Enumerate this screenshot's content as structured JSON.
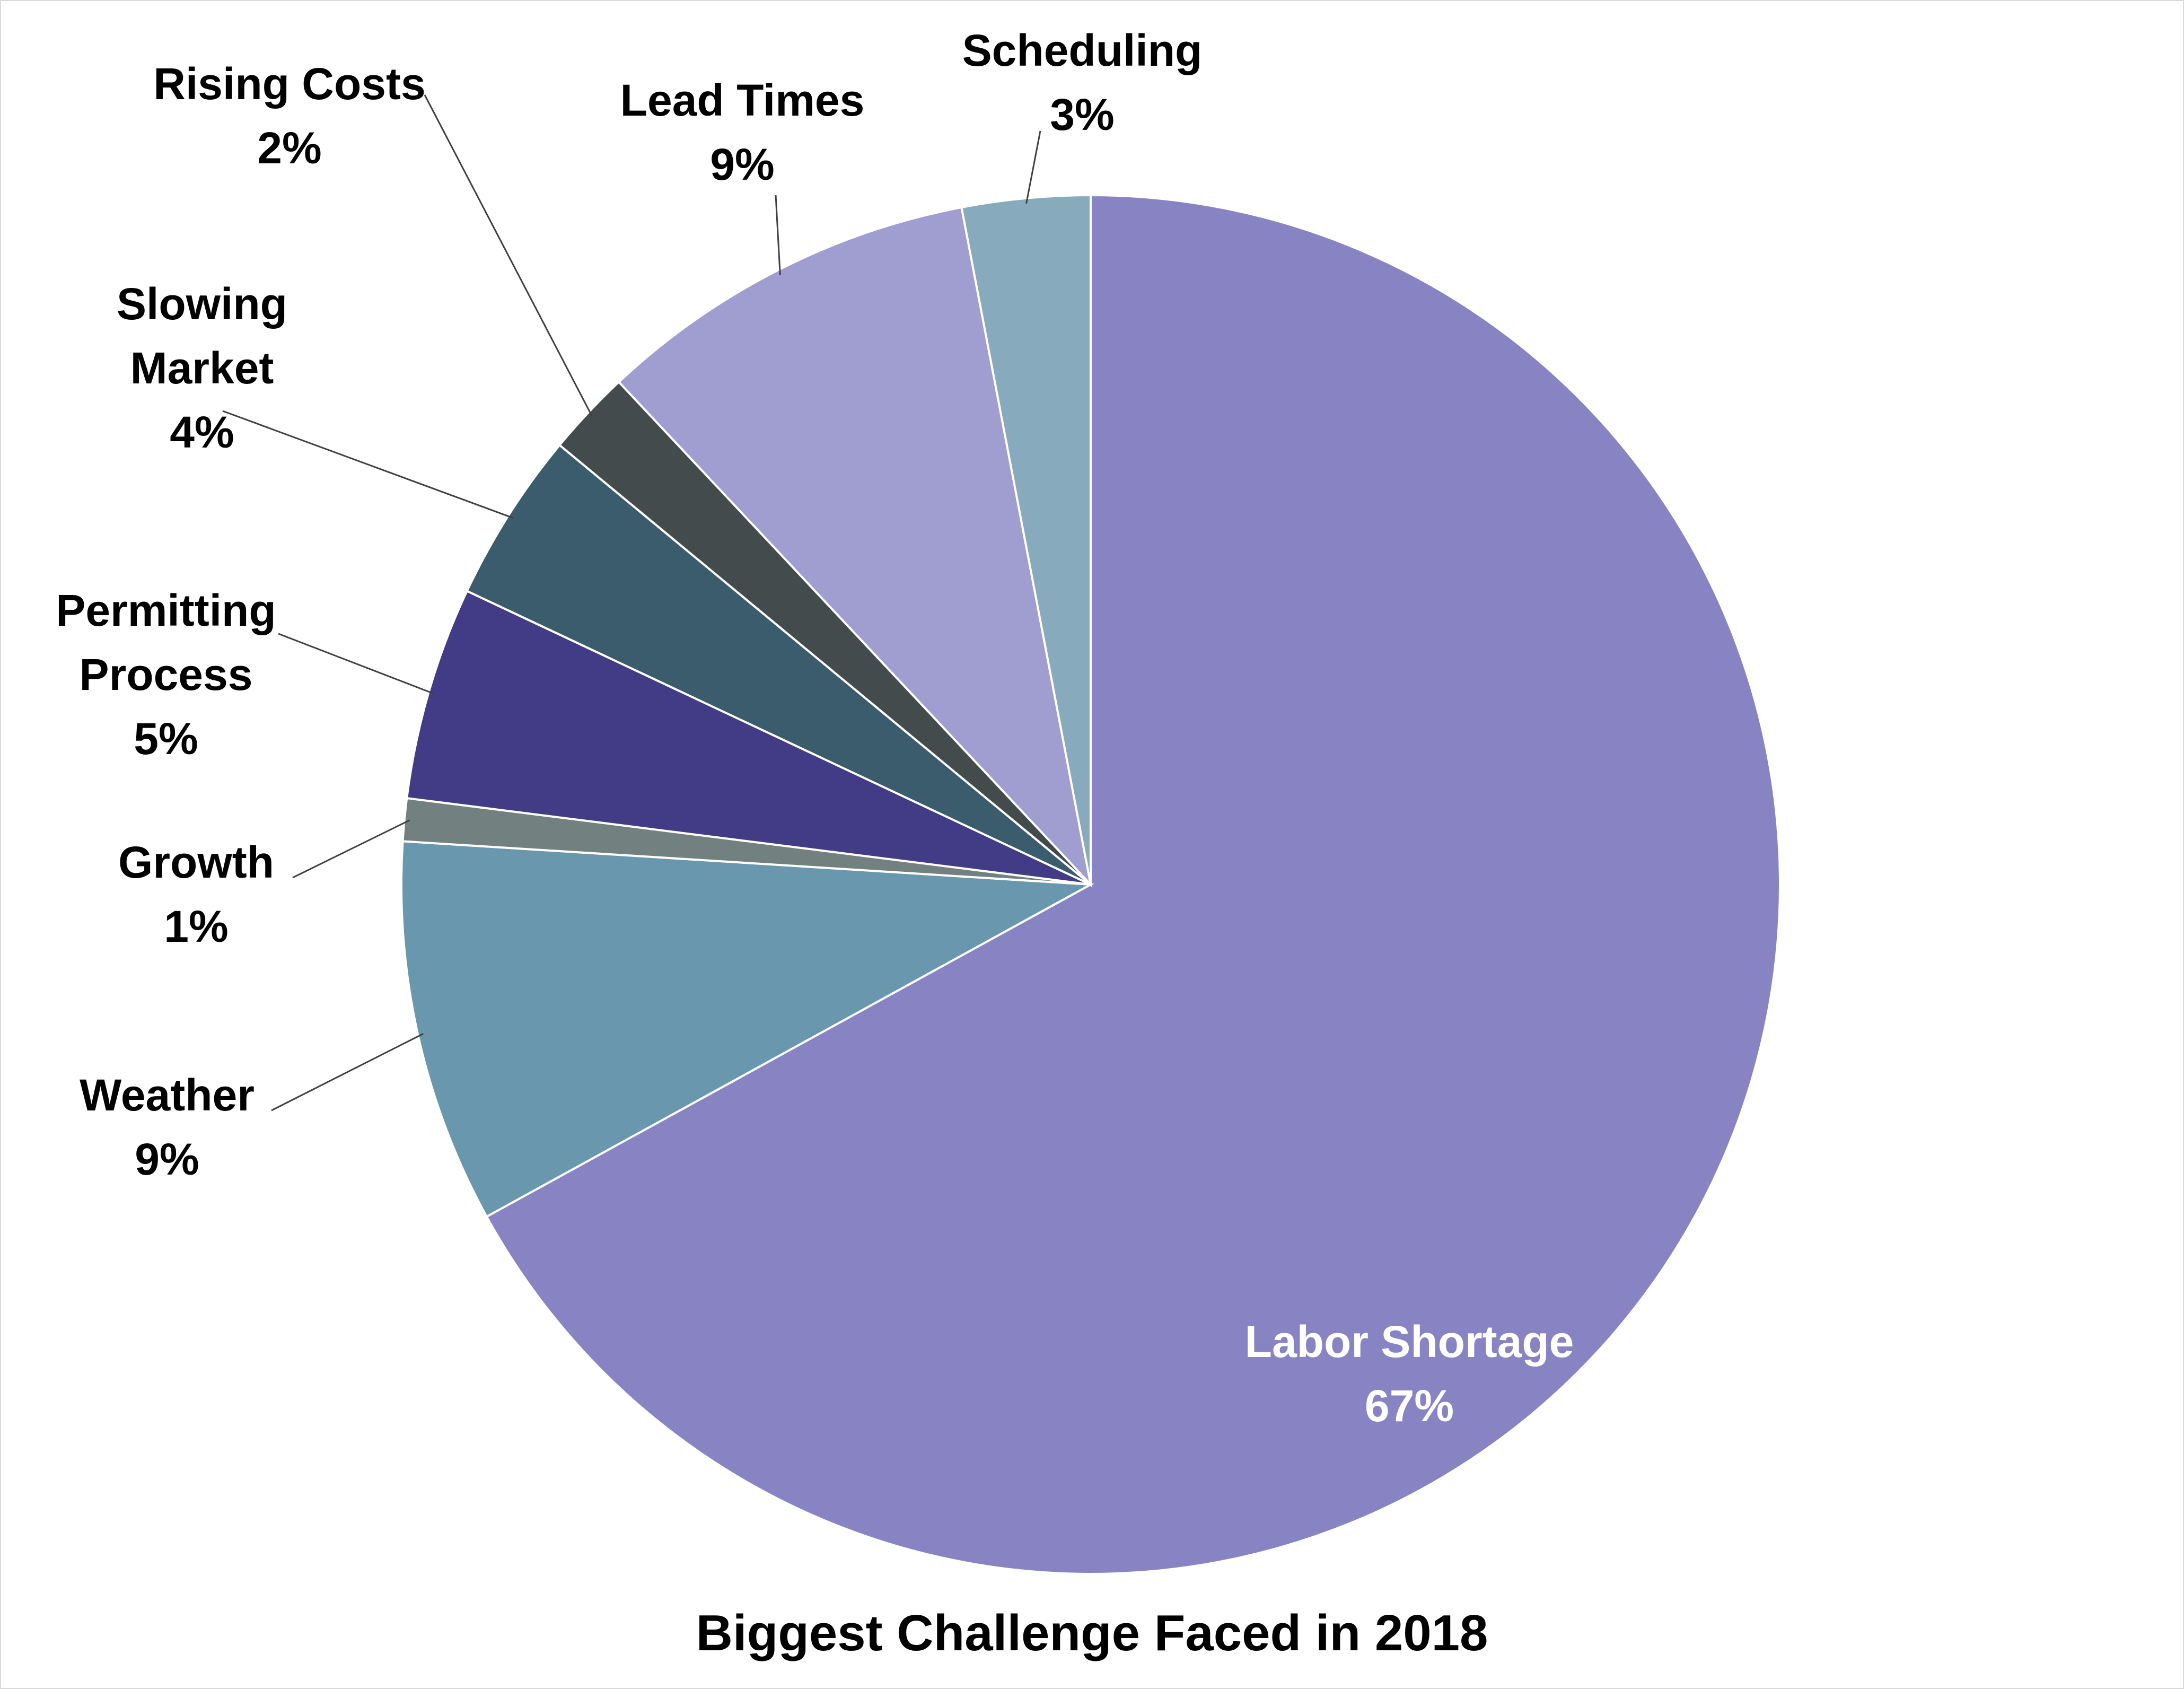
{
  "chart_data": {
    "type": "pie",
    "title": "Biggest Challenge Faced in 2018",
    "categories": [
      "Labor Shortage",
      "Weather",
      "Growth",
      "Permitting Process",
      "Slowing Market",
      "Rising Costs",
      "Lead Times",
      "Scheduling"
    ],
    "values": [
      67,
      9,
      1,
      5,
      4,
      2,
      9,
      3
    ],
    "value_labels": [
      "67%",
      "9%",
      "1%",
      "5%",
      "4%",
      "2%",
      "9%",
      "3%"
    ],
    "colors": [
      "#8884c4",
      "#6897ae",
      "#72817f",
      "#413c85",
      "#3b5c6d",
      "#434b4d",
      "#a09dd1",
      "#87aabc"
    ]
  }
}
